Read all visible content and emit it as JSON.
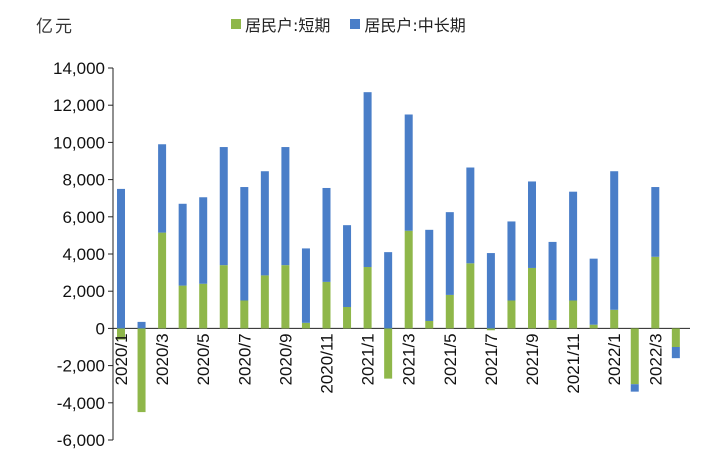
{
  "chart_data": {
    "type": "bar",
    "stacked": true,
    "unit_label": "亿元",
    "ylim": [
      -6000,
      14000
    ],
    "yticks": [
      "14,000",
      "12,000",
      "10,000",
      "8,000",
      "6,000",
      "4,000",
      "2,000",
      "0",
      "-2,000",
      "-4,000",
      "-6,000"
    ],
    "ytick_values": [
      14000,
      12000,
      10000,
      8000,
      6000,
      4000,
      2000,
      0,
      -2000,
      -4000,
      -6000
    ],
    "categories": [
      "2020/1",
      "2020/2",
      "2020/3",
      "2020/4",
      "2020/5",
      "2020/6",
      "2020/7",
      "2020/8",
      "2020/9",
      "2020/10",
      "2020/11",
      "2020/12",
      "2021/1",
      "2021/2",
      "2021/3",
      "2021/4",
      "2021/5",
      "2021/6",
      "2021/7",
      "2021/8",
      "2021/9",
      "2021/10",
      "2021/11",
      "2021/12",
      "2022/1",
      "2022/2",
      "2022/3",
      "2022/4"
    ],
    "xtick_labels": [
      "2020/1",
      "",
      "2020/3",
      "",
      "2020/5",
      "",
      "2020/7",
      "",
      "2020/9",
      "",
      "2020/11",
      "",
      "2021/1",
      "",
      "2021/3",
      "",
      "2021/5",
      "",
      "2021/7",
      "",
      "2021/9",
      "",
      "2021/11",
      "",
      "2022/1",
      "",
      "2022/3",
      ""
    ],
    "series": [
      {
        "name": "居民户:短期",
        "color": "#8fb74a",
        "values": [
          -600,
          -4500,
          5150,
          2300,
          2400,
          3400,
          1500,
          2850,
          3400,
          300,
          2500,
          1150,
          3300,
          -2700,
          5250,
          400,
          1800,
          3500,
          -100,
          1500,
          3250,
          450,
          1500,
          200,
          1000,
          -3000,
          3850,
          -1000
        ]
      },
      {
        "name": "居民户:中长期",
        "color": "#4a7ec8",
        "values": [
          7500,
          350,
          4750,
          4400,
          4650,
          6350,
          6100,
          5600,
          6350,
          4000,
          5050,
          4400,
          9400,
          4100,
          6250,
          4900,
          4450,
          5150,
          4050,
          4250,
          4650,
          4200,
          5850,
          3550,
          7450,
          -400,
          3750,
          -600
        ]
      }
    ]
  }
}
